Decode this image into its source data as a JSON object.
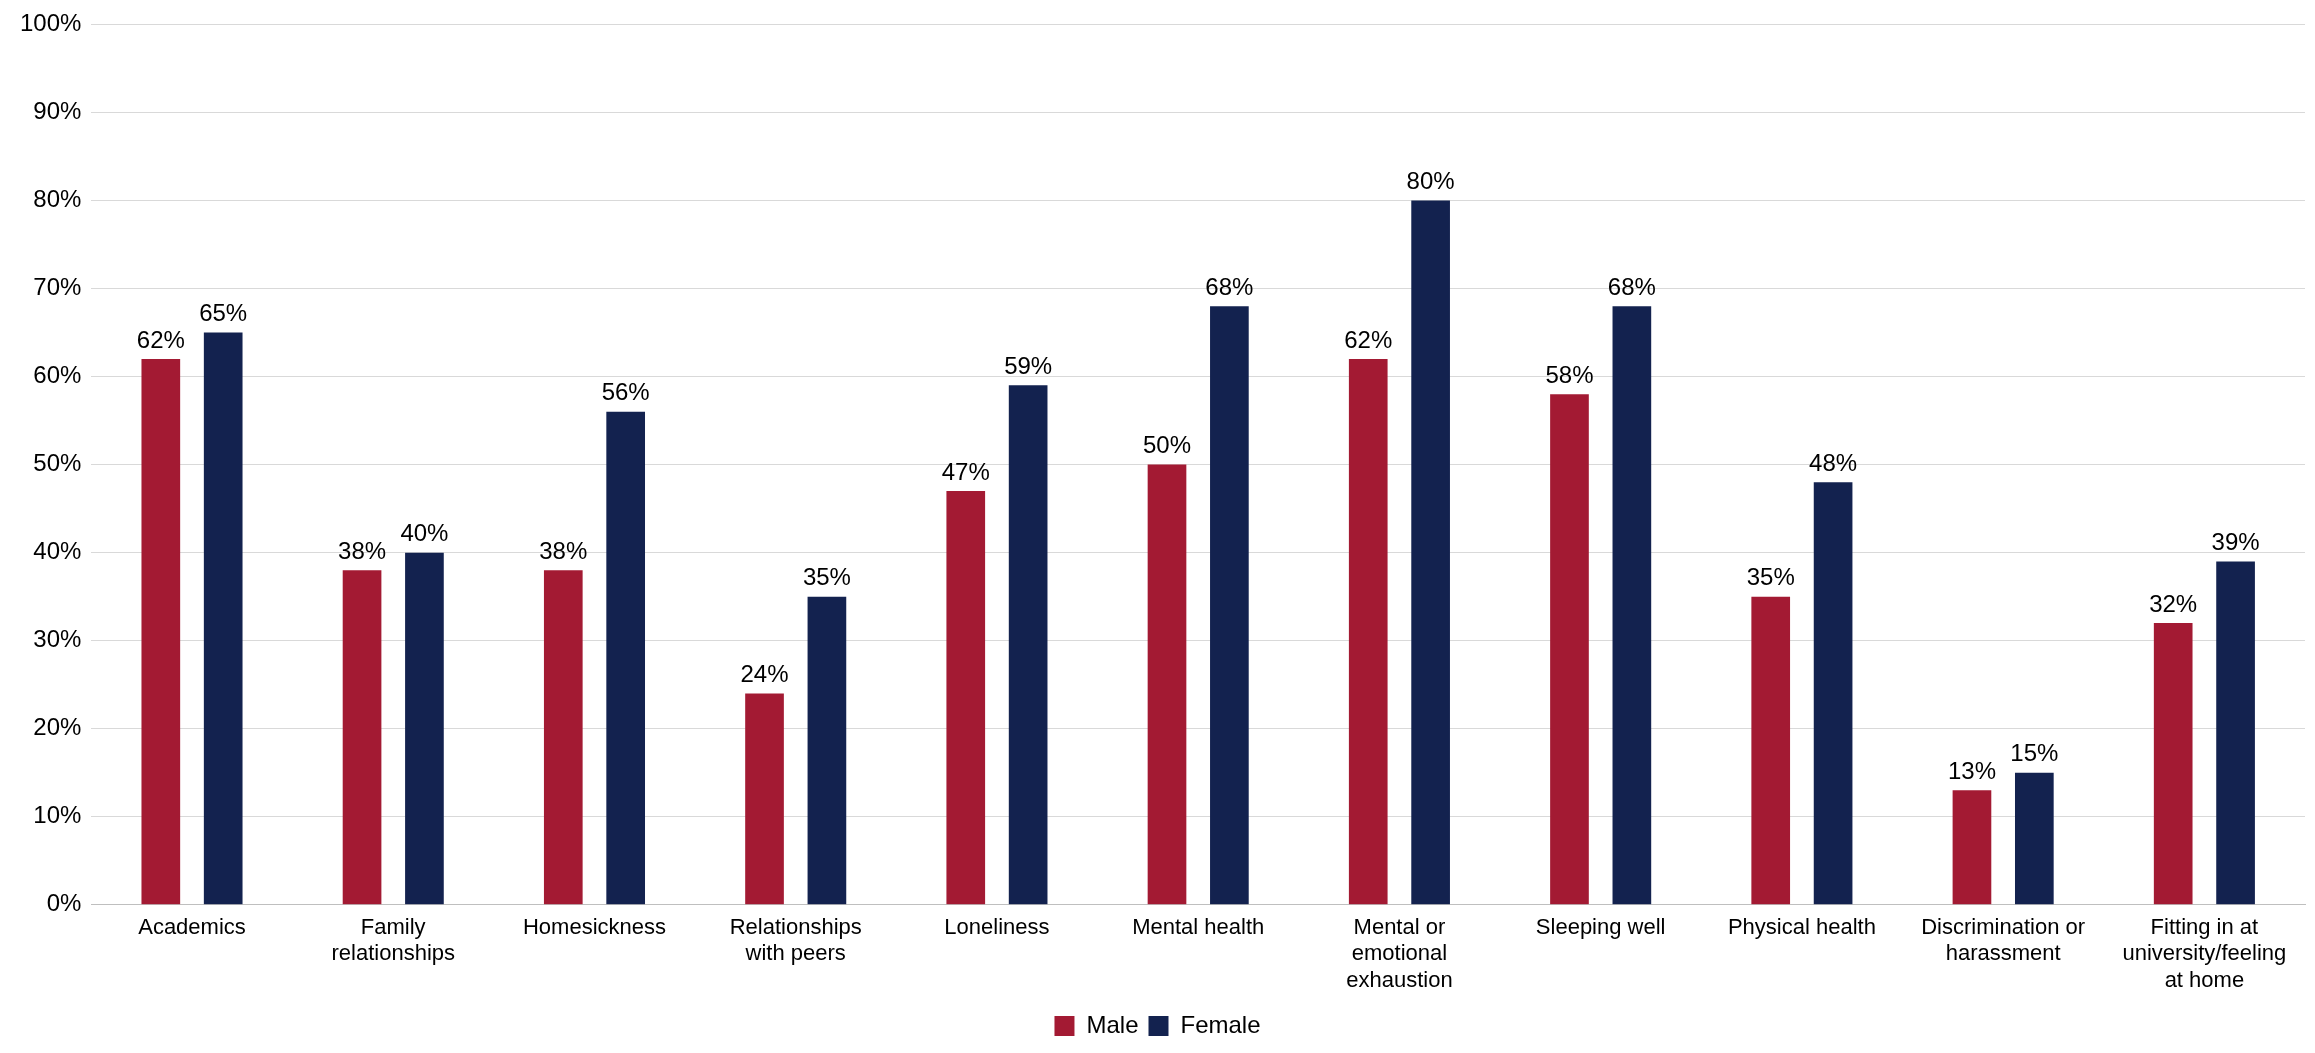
{
  "chart_data": {
    "type": "bar",
    "categories": [
      "Academics",
      "Family relationships",
      "Homesickness",
      "Relationships with peers",
      "Loneliness",
      "Mental health",
      "Mental or emotional exhaustion",
      "Sleeping well",
      "Physical health",
      "Discrimination or harassment",
      "Fitting in at university/feeling at home"
    ],
    "series": [
      {
        "name": "Male",
        "color": "#a31a33",
        "values": [
          62,
          38,
          38,
          24,
          47,
          50,
          62,
          58,
          35,
          13,
          32
        ],
        "value_labels": [
          "62%",
          "38%",
          "38%",
          "24%",
          "47%",
          "50%",
          "62%",
          "58%",
          "35%",
          "13%",
          "32%"
        ]
      },
      {
        "name": "Female",
        "color": "#13224f",
        "values": [
          65,
          40,
          56,
          35,
          59,
          68,
          80,
          68,
          48,
          15,
          39
        ],
        "value_labels": [
          "65%",
          "40%",
          "56%",
          "35%",
          "59%",
          "68%",
          "80%",
          "68%",
          "48%",
          "15%",
          "39%"
        ]
      }
    ],
    "ylim": [
      0,
      100
    ],
    "yticks": [
      {
        "value": 0,
        "label": "0%"
      },
      {
        "value": 10,
        "label": "10%"
      },
      {
        "value": 20,
        "label": "20%"
      },
      {
        "value": 30,
        "label": "30%"
      },
      {
        "value": 40,
        "label": "40%"
      },
      {
        "value": 50,
        "label": "50%"
      },
      {
        "value": 60,
        "label": "60%"
      },
      {
        "value": 70,
        "label": "70%"
      },
      {
        "value": 80,
        "label": "80%"
      },
      {
        "value": 90,
        "label": "90%"
      },
      {
        "value": 100,
        "label": "100%"
      }
    ],
    "grid": "y",
    "legend": "bottom"
  }
}
